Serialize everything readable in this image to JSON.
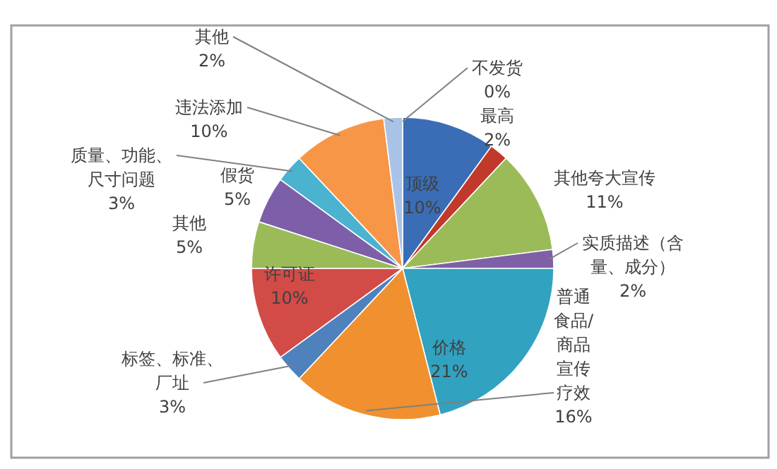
{
  "chart_data": {
    "type": "pie",
    "categories": [
      "不发货",
      "顶级",
      "最高",
      "其他夸大宣传",
      "实质描述（含量、成分）",
      "价格",
      "普通食品/商品宣传疗效",
      "标签、标准、厂址",
      "许可证",
      "其他",
      "假货",
      "质量、功能、尺寸问题",
      "违法添加",
      "其他"
    ],
    "values": [
      0,
      10,
      2,
      11,
      2,
      21,
      16,
      3,
      10,
      5,
      5,
      3,
      10,
      2
    ],
    "colors": [
      "#b9cde5",
      "#3a6db5",
      "#c0392b",
      "#9bbb59",
      "#7f5fa6",
      "#31a2c0",
      "#f0902f",
      "#4f81bd",
      "#d24b47",
      "#9bbb59",
      "#7d5ea8",
      "#4bb3cf",
      "#f79646",
      "#a9c3e8"
    ],
    "value_labels": [
      "0%",
      "10%",
      "2%",
      "11%",
      "2%",
      "21%",
      "16%",
      "3%",
      "10%",
      "5%",
      "5%",
      "3%",
      "10%",
      "2%"
    ]
  }
}
